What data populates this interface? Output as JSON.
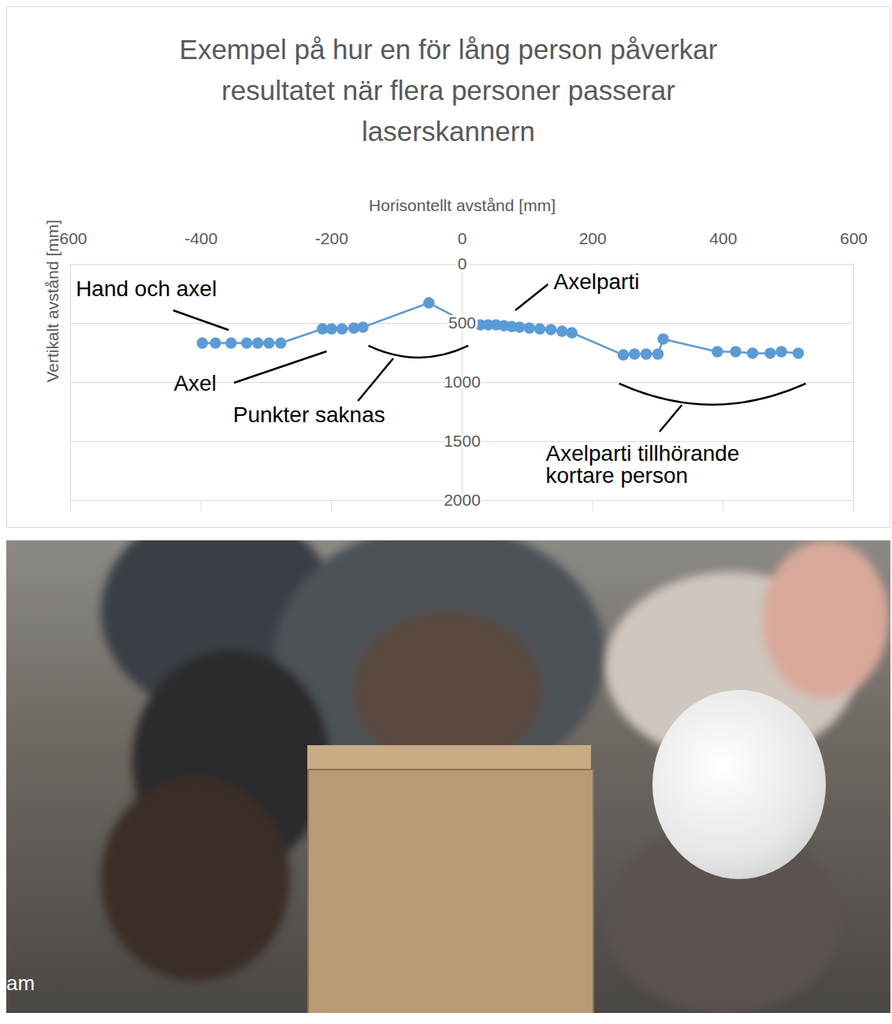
{
  "chart_data": {
    "type": "line",
    "title": "Exempel på hur en för lång person påverkar resultatet när flera personer passerar laserskannern",
    "x_label": "Horisontellt avstånd [mm]",
    "y_label": "Vertikalt avstånd [mm]",
    "x": [
      -398,
      -378,
      -354,
      -330,
      -313,
      -296,
      -278,
      -214,
      -200,
      -184,
      -166,
      -152,
      -51,
      13,
      28,
      40,
      52,
      64,
      76,
      88,
      103,
      119,
      136,
      153,
      168,
      247,
      264,
      282,
      300,
      308,
      391,
      419,
      445,
      472,
      489,
      515
    ],
    "values": [
      667,
      667,
      667,
      667,
      667,
      667,
      667,
      547,
      547,
      547,
      540,
      533,
      327,
      513,
      513,
      513,
      513,
      520,
      527,
      533,
      540,
      547,
      553,
      567,
      580,
      767,
      760,
      760,
      760,
      633,
      740,
      740,
      753,
      753,
      740,
      753
    ],
    "color": "#5b9bd5",
    "marker": "circle",
    "line_style": "solid",
    "xlim": [
      -600,
      600
    ],
    "ylim": [
      0,
      2000
    ],
    "xticks": [
      -600,
      -400,
      -200,
      0,
      200,
      400,
      600
    ],
    "yticks": [
      0,
      500,
      1000,
      1500,
      2000
    ],
    "grid": true,
    "annotations": [
      "Hand och axel",
      "Axel",
      "Punkter saknas",
      "Axelparti",
      "Axelparti tillhörande kortare person"
    ]
  },
  "photo": {
    "caption": "am"
  }
}
